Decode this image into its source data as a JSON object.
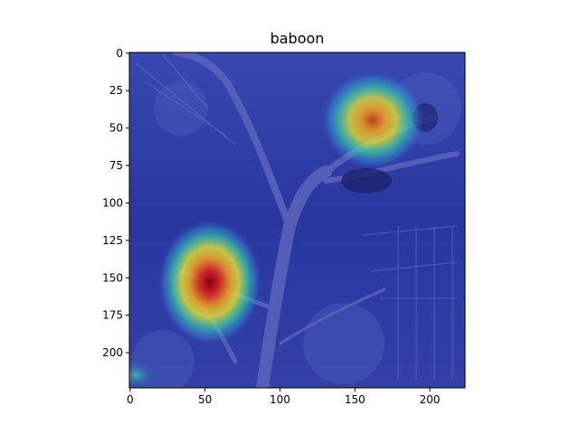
{
  "title": "baboon",
  "image": {
    "width": 224,
    "height": 224,
    "colormap": "jet",
    "description_icon": "heatmap-overlay-image"
  },
  "axes": {
    "x_ticks": [
      "0",
      "50",
      "100",
      "150",
      "200"
    ],
    "y_ticks": [
      "0",
      "25",
      "50",
      "75",
      "100",
      "125",
      "150",
      "175",
      "200"
    ]
  },
  "colors": {
    "background_blue": "#2b3a9c",
    "frame": "#000000"
  }
}
